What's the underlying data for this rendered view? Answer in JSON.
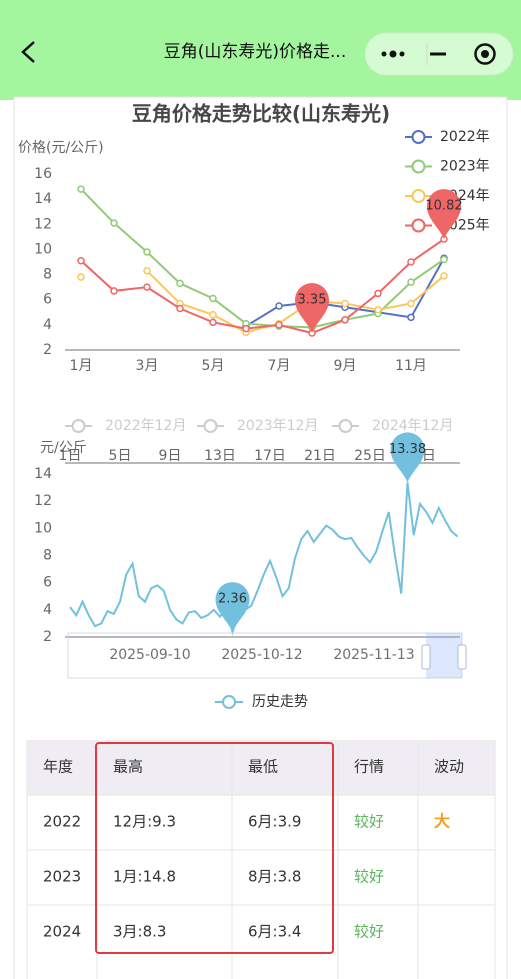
{
  "header": {
    "title": "豆角(山东寿光)价格走..."
  },
  "chart_data": [
    {
      "type": "line",
      "title": "豆角价格走势比较(山东寿光)",
      "y_label": "价格(元/公斤)",
      "categories": [
        "1月",
        null,
        "3月",
        null,
        "5月",
        null,
        "7月",
        null,
        "9月",
        null,
        "11月",
        null
      ],
      "ylim": [
        2,
        16
      ],
      "yticks": [
        2,
        4,
        6,
        8,
        10,
        12,
        14,
        16
      ],
      "legend": "top-right",
      "series": [
        {
          "name": "2022年",
          "color": "#5470c6",
          "values": [
            null,
            null,
            null,
            null,
            null,
            3.9,
            5.5,
            5.8,
            5.4,
            5.0,
            4.6,
            9.3
          ]
        },
        {
          "name": "2023年",
          "color": "#91cc75",
          "values": [
            14.8,
            12.1,
            9.8,
            7.3,
            6.1,
            4.1,
            3.9,
            3.8,
            4.4,
            4.9,
            7.4,
            9.2
          ]
        },
        {
          "name": "2024年",
          "color": "#fac858",
          "values": [
            7.8,
            null,
            8.3,
            5.7,
            4.8,
            3.4,
            4.1,
            5.9,
            5.7,
            5.2,
            5.7,
            7.9
          ]
        },
        {
          "name": "2025年",
          "color": "#ee6666",
          "values": [
            9.1,
            6.7,
            7.0,
            5.3,
            4.2,
            3.7,
            4.0,
            3.35,
            4.4,
            6.5,
            9.0,
            10.82
          ],
          "mark_point": [
            "max",
            "min"
          ]
        }
      ]
    },
    {
      "type": "line",
      "y_label": "元/公斤",
      "x_axis_position": "top",
      "categories": [
        "1日",
        null,
        null,
        null,
        null,
        null,
        null,
        null,
        "5日",
        null,
        null,
        null,
        null,
        null,
        null,
        null,
        "9日",
        null,
        null,
        null,
        null,
        null,
        null,
        null,
        "13日",
        null,
        null,
        null,
        null,
        null,
        null,
        null,
        "17日",
        null,
        null,
        null,
        null,
        null,
        null,
        null,
        "21日",
        null,
        null,
        null,
        null,
        null,
        null,
        null,
        "25日",
        null,
        null,
        null,
        null,
        null,
        null,
        null,
        "29日",
        null,
        null,
        null,
        null,
        null,
        null
      ],
      "ylim": [
        2,
        14
      ],
      "yticks": [
        2,
        4,
        6,
        8,
        10,
        12,
        14
      ],
      "inactive_legend": [
        "2022年12月",
        "2023年12月",
        "2024年12月"
      ],
      "zoom_labels": [
        "2025-09-10",
        "2025-10-12",
        "2025-11-13"
      ],
      "series": [
        {
          "name": "历史走势",
          "color": "#73c0de",
          "mark_point": [
            "max",
            "min"
          ],
          "values": [
            4.2,
            3.6,
            4.6,
            3.6,
            2.8,
            3.0,
            3.9,
            3.7,
            4.6,
            6.6,
            7.4,
            5.0,
            4.6,
            5.6,
            5.8,
            5.4,
            4.0,
            3.3,
            3.0,
            3.8,
            3.9,
            3.4,
            3.6,
            4.0,
            3.5,
            4.2,
            2.36,
            3.8,
            4.0,
            4.3,
            5.4,
            6.6,
            7.6,
            6.4,
            5.0,
            5.6,
            7.8,
            9.2,
            9.8,
            9.0,
            9.6,
            10.2,
            9.9,
            9.4,
            9.2,
            9.3,
            8.6,
            8.0,
            7.5,
            8.3,
            9.8,
            11.2,
            8.0,
            5.2,
            13.38,
            9.5,
            11.8,
            11.2,
            10.4,
            11.5,
            10.6,
            9.8,
            9.4
          ]
        }
      ]
    }
  ],
  "table": {
    "columns": [
      "年度",
      "最高",
      "最低",
      "行情",
      "波动"
    ],
    "rows": [
      [
        "2022",
        "12月:9.3",
        "6月:3.9",
        "较好",
        "大"
      ],
      [
        "2023",
        "1月:14.8",
        "8月:3.8",
        "较好",
        null
      ],
      [
        "2024",
        "3月:8.3",
        "6月:3.4",
        "较好",
        null
      ]
    ]
  }
}
